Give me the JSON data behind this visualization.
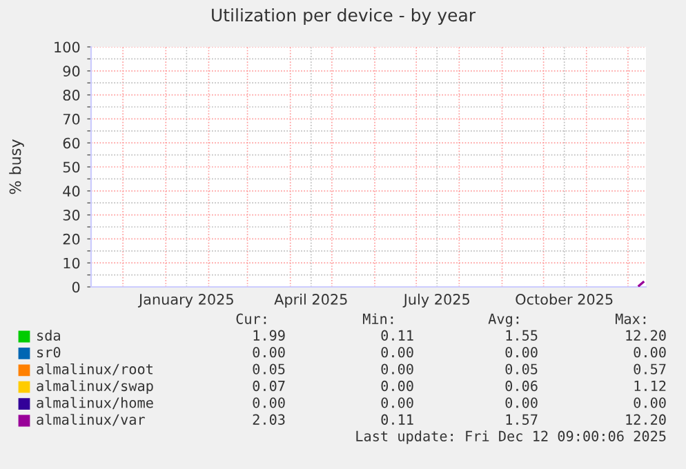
{
  "chart_data": {
    "type": "line",
    "title": "Utilization per device - by year",
    "ylabel": "% busy",
    "x": [
      "2025-12-09",
      "2025-12-12"
    ],
    "series": [
      {
        "name": "sda",
        "color": "#00cc00",
        "values": [
          null,
          null
        ]
      },
      {
        "name": "sr0",
        "color": "#0066b3",
        "values": [
          null,
          null
        ]
      },
      {
        "name": "almalinux/root",
        "color": "#ff8000",
        "values": [
          null,
          null
        ]
      },
      {
        "name": "almalinux/swap",
        "color": "#ffcc00",
        "values": [
          null,
          null
        ]
      },
      {
        "name": "almalinux/home",
        "color": "#330099",
        "values": [
          null,
          null
        ]
      },
      {
        "name": "almalinux/var",
        "color": "#990099",
        "values": [
          0.5,
          2
        ]
      }
    ],
    "xlim": [
      "2024-11-08",
      "2025-12-14"
    ],
    "xticks": [
      {
        "value": "2024-12-01",
        "label": null
      },
      {
        "value": "2025-01-01",
        "label": null
      },
      {
        "value": "2025-02-01",
        "label": null
      },
      {
        "value": "2025-03-01",
        "label": null
      },
      {
        "value": "2025-04-01",
        "label": null
      },
      {
        "value": "2025-05-01",
        "label": null
      },
      {
        "value": "2025-06-01",
        "label": null
      },
      {
        "value": "2025-07-01",
        "label": null
      },
      {
        "value": "2025-08-01",
        "label": null
      },
      {
        "value": "2025-09-01",
        "label": null
      },
      {
        "value": "2025-10-01",
        "label": null
      },
      {
        "value": "2025-11-01",
        "label": null
      },
      {
        "value": "2025-12-01",
        "label": null
      },
      {
        "value": "2025-01-16",
        "label": "January 2025"
      },
      {
        "value": "2025-04-16",
        "label": "April 2025"
      },
      {
        "value": "2025-07-16",
        "label": "July 2025"
      },
      {
        "value": "2025-10-16",
        "label": "October 2025"
      }
    ],
    "ylim": [
      0,
      100
    ],
    "yticks": [
      0,
      10,
      20,
      30,
      40,
      50,
      60,
      70,
      80,
      90,
      100,
      {
        "value": 5,
        "label": null
      },
      {
        "value": 15,
        "label": null
      },
      {
        "value": 25,
        "label": null
      },
      {
        "value": 35,
        "label": null
      },
      {
        "value": 45,
        "label": null
      },
      {
        "value": 55,
        "label": null
      },
      {
        "value": 65,
        "label": null
      },
      {
        "value": 75,
        "label": null
      },
      {
        "value": 85,
        "label": null
      },
      {
        "value": 95,
        "label": null
      }
    ],
    "grid": true,
    "legend": "bottom",
    "marker": "none",
    "line_style": "solid",
    "annotations": [
      "Cur:",
      "Min:",
      "Avg:",
      "Max:",
      "1.99",
      "0.11",
      "1.55",
      "12.20",
      "0.00",
      "0.00",
      "0.00",
      "0.00",
      "0.05",
      "0.00",
      "0.05",
      "0.57",
      "0.07",
      "0.00",
      "0.06",
      "1.12",
      "0.00",
      "0.00",
      "0.00",
      "0.00",
      "2.03",
      "0.11",
      "1.57",
      "12.20",
      "Last update: Fri Dec 12 09:00:06 2025"
    ]
  }
}
